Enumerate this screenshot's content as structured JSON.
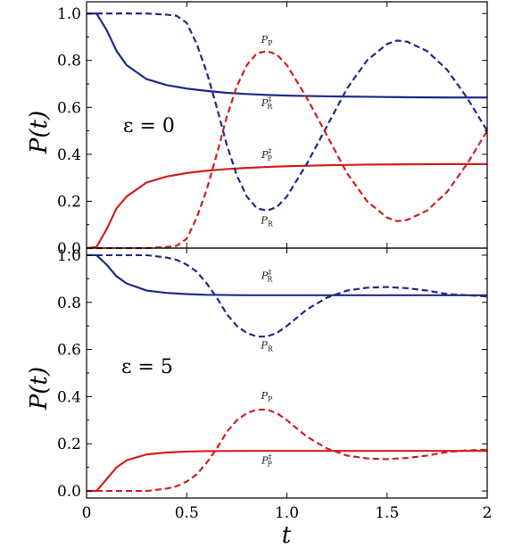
{
  "chart_data": [
    {
      "type": "line",
      "panel": "top",
      "annotation": "ε = 0",
      "ylabel": "P(t)",
      "xlim": [
        0,
        2
      ],
      "ylim": [
        0,
        1.05
      ],
      "yticks": [
        "0.0",
        "0.2",
        "0.4",
        "0.6",
        "0.8",
        "1.0"
      ],
      "colors": {
        "blue": "#1f2a8a",
        "red": "#d21f1f"
      },
      "series": [
        {
          "name": "P_R^‡",
          "color": "blue",
          "dash": false,
          "x": [
            0,
            0.05,
            0.1,
            0.15,
            0.2,
            0.3,
            0.4,
            0.5,
            0.6,
            0.7,
            0.8,
            0.9,
            1.0,
            1.2,
            1.4,
            1.6,
            1.8,
            2.0
          ],
          "y": [
            1.0,
            1.0,
            0.93,
            0.84,
            0.78,
            0.72,
            0.695,
            0.68,
            0.67,
            0.662,
            0.657,
            0.653,
            0.65,
            0.647,
            0.645,
            0.643,
            0.642,
            0.642
          ]
        },
        {
          "name": "P_P^‡",
          "color": "red",
          "dash": false,
          "x": [
            0,
            0.05,
            0.1,
            0.15,
            0.2,
            0.3,
            0.4,
            0.5,
            0.6,
            0.7,
            0.8,
            0.9,
            1.0,
            1.2,
            1.4,
            1.6,
            1.8,
            2.0
          ],
          "y": [
            0.0,
            0.005,
            0.08,
            0.17,
            0.22,
            0.28,
            0.305,
            0.32,
            0.33,
            0.337,
            0.342,
            0.346,
            0.349,
            0.353,
            0.356,
            0.357,
            0.358,
            0.358
          ]
        },
        {
          "name": "P_R",
          "color": "blue",
          "dash": true,
          "x": [
            0,
            0.3,
            0.4,
            0.45,
            0.5,
            0.55,
            0.6,
            0.65,
            0.7,
            0.75,
            0.8,
            0.85,
            0.9,
            0.95,
            1.0,
            1.1,
            1.2,
            1.3,
            1.4,
            1.5,
            1.55,
            1.6,
            1.7,
            1.8,
            1.9,
            2.0
          ],
          "y": [
            1.0,
            1.0,
            0.995,
            0.99,
            0.96,
            0.87,
            0.75,
            0.6,
            0.44,
            0.31,
            0.22,
            0.17,
            0.16,
            0.175,
            0.22,
            0.36,
            0.52,
            0.68,
            0.8,
            0.87,
            0.885,
            0.88,
            0.84,
            0.76,
            0.64,
            0.5
          ]
        },
        {
          "name": "P_P",
          "color": "red",
          "dash": true,
          "x": [
            0,
            0.3,
            0.4,
            0.45,
            0.5,
            0.55,
            0.6,
            0.65,
            0.7,
            0.75,
            0.8,
            0.85,
            0.9,
            0.95,
            1.0,
            1.1,
            1.2,
            1.3,
            1.4,
            1.5,
            1.55,
            1.6,
            1.7,
            1.8,
            1.9,
            2.0
          ],
          "y": [
            0.0,
            0.0,
            0.005,
            0.01,
            0.04,
            0.13,
            0.25,
            0.4,
            0.56,
            0.69,
            0.78,
            0.83,
            0.84,
            0.825,
            0.78,
            0.64,
            0.48,
            0.32,
            0.2,
            0.13,
            0.115,
            0.12,
            0.16,
            0.24,
            0.36,
            0.5
          ]
        }
      ],
      "labels": [
        {
          "text": "P_P",
          "x": 0.9,
          "y": 0.875
        },
        {
          "text": "P_R^‡",
          "x": 0.9,
          "y": 0.605
        },
        {
          "text": "P_P^‡",
          "x": 0.9,
          "y": 0.385
        },
        {
          "text": "P_R",
          "x": 0.9,
          "y": 0.105
        }
      ]
    },
    {
      "type": "line",
      "panel": "bottom",
      "annotation": "ε = 5",
      "ylabel": "P(t)",
      "xlabel": "t",
      "xlim": [
        0,
        2
      ],
      "ylim": [
        -0.03,
        1.03
      ],
      "xticks": [
        "0",
        "0.5",
        "1.0",
        "1.5",
        "2"
      ],
      "yticks": [
        "0.0",
        "0.2",
        "0.4",
        "0.6",
        "0.8",
        "1.0"
      ],
      "colors": {
        "blue": "#1f2a8a",
        "red": "#d21f1f"
      },
      "series": [
        {
          "name": "P_R^‡",
          "color": "blue",
          "dash": false,
          "x": [
            0,
            0.05,
            0.1,
            0.15,
            0.2,
            0.3,
            0.4,
            0.5,
            0.6,
            0.8,
            1.0,
            1.2,
            1.4,
            1.6,
            1.8,
            2.0
          ],
          "y": [
            1.0,
            1.0,
            0.96,
            0.91,
            0.88,
            0.85,
            0.84,
            0.835,
            0.832,
            0.83,
            0.83,
            0.83,
            0.83,
            0.83,
            0.83,
            0.83
          ]
        },
        {
          "name": "P_P^‡",
          "color": "red",
          "dash": false,
          "x": [
            0,
            0.05,
            0.1,
            0.15,
            0.2,
            0.3,
            0.4,
            0.5,
            0.6,
            0.8,
            1.0,
            1.2,
            1.4,
            1.6,
            1.8,
            2.0
          ],
          "y": [
            0.0,
            0.0,
            0.05,
            0.1,
            0.13,
            0.155,
            0.163,
            0.167,
            0.169,
            0.17,
            0.17,
            0.17,
            0.17,
            0.17,
            0.17,
            0.17
          ]
        },
        {
          "name": "P_R",
          "color": "blue",
          "dash": true,
          "x": [
            0,
            0.3,
            0.4,
            0.45,
            0.5,
            0.55,
            0.6,
            0.65,
            0.7,
            0.75,
            0.8,
            0.85,
            0.9,
            0.95,
            1.0,
            1.1,
            1.2,
            1.3,
            1.4,
            1.5,
            1.6,
            1.7,
            1.8,
            1.9,
            2.0
          ],
          "y": [
            1.0,
            1.0,
            0.99,
            0.98,
            0.96,
            0.93,
            0.88,
            0.82,
            0.75,
            0.7,
            0.67,
            0.655,
            0.655,
            0.67,
            0.7,
            0.77,
            0.82,
            0.85,
            0.862,
            0.865,
            0.86,
            0.85,
            0.835,
            0.83,
            0.825
          ]
        },
        {
          "name": "P_P",
          "color": "red",
          "dash": true,
          "x": [
            0,
            0.3,
            0.4,
            0.45,
            0.5,
            0.55,
            0.6,
            0.65,
            0.7,
            0.75,
            0.8,
            0.85,
            0.9,
            0.95,
            1.0,
            1.1,
            1.2,
            1.3,
            1.4,
            1.5,
            1.6,
            1.7,
            1.8,
            1.9,
            2.0
          ],
          "y": [
            0.0,
            0.0,
            0.01,
            0.02,
            0.04,
            0.07,
            0.12,
            0.18,
            0.25,
            0.3,
            0.33,
            0.345,
            0.345,
            0.33,
            0.3,
            0.23,
            0.18,
            0.15,
            0.138,
            0.135,
            0.14,
            0.15,
            0.165,
            0.172,
            0.175
          ]
        }
      ],
      "labels": [
        {
          "text": "P_R^‡",
          "x": 0.9,
          "y": 0.9
        },
        {
          "text": "P_R",
          "x": 0.9,
          "y": 0.605
        },
        {
          "text": "P_P",
          "x": 0.9,
          "y": 0.39
        },
        {
          "text": "P_P^‡",
          "x": 0.9,
          "y": 0.115
        }
      ]
    }
  ]
}
